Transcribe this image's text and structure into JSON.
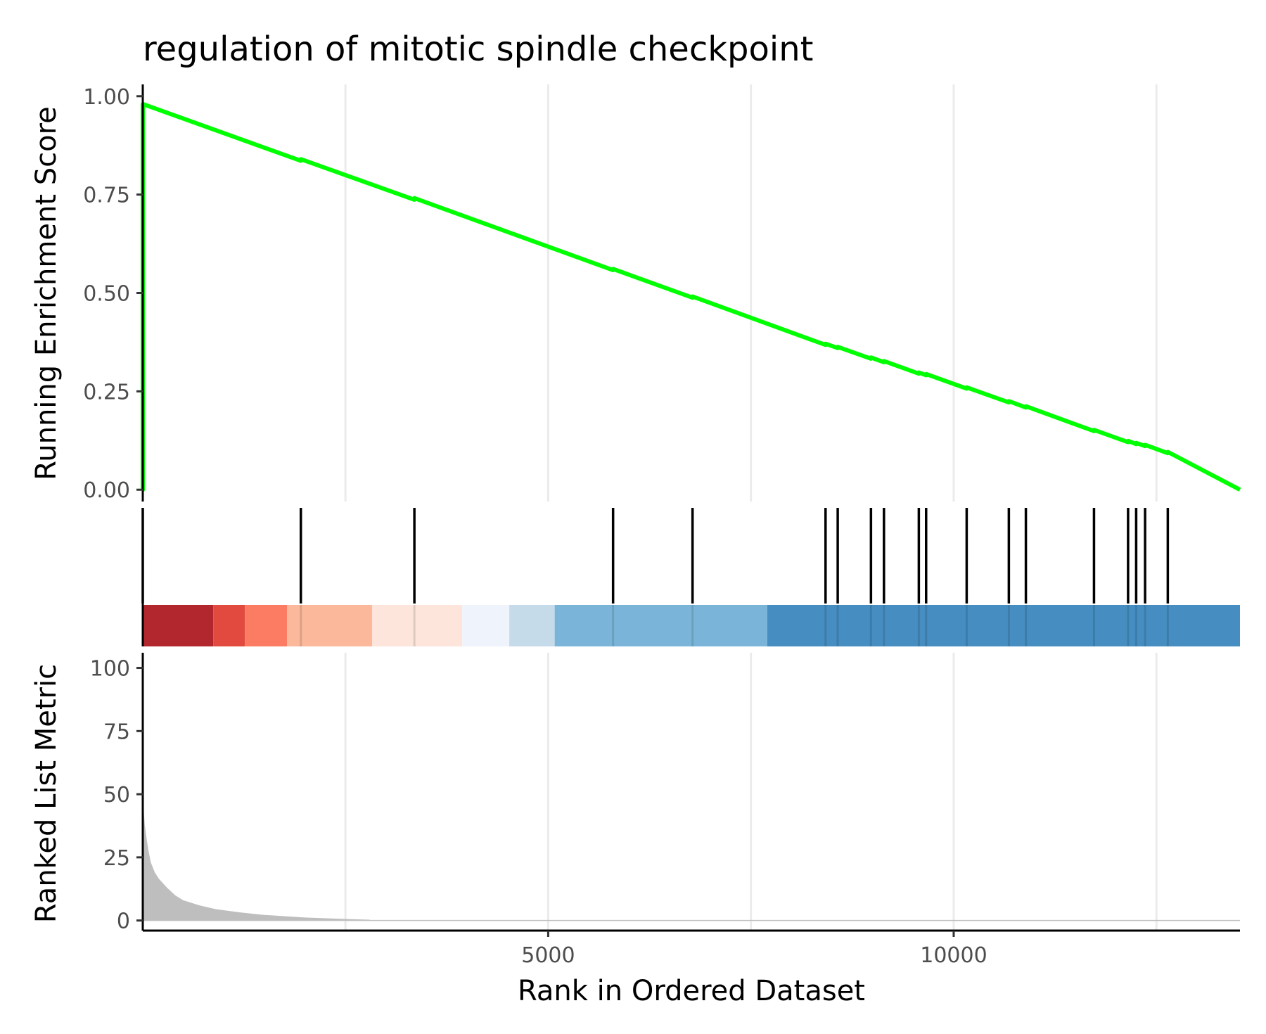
{
  "chart_data": {
    "type": "line",
    "title": "regulation of mitotic spindle checkpoint",
    "xlabel": "Rank in Ordered Dataset",
    "xlim": [
      1,
      13530
    ],
    "x_ticks": [
      5000,
      10000
    ],
    "x_tick_labels": [
      "5000",
      "10000"
    ],
    "grid": true,
    "panels": [
      {
        "id": "running-es",
        "ylabel": "Running Enrichment Score",
        "ylim": [
          -0.03,
          1.03
        ],
        "y_ticks": [
          0,
          0.25,
          0.5,
          0.75,
          1
        ],
        "y_tick_labels": [
          "0.00",
          "0.25",
          "0.50",
          "0.75",
          "1.00"
        ],
        "series": [
          {
            "color": "#00ff00",
            "x": [
              1,
              2,
              2,
              1950,
              1950,
              3350,
              3350,
              5800,
              5800,
              6780,
              6780,
              8420,
              8420,
              8570,
              8570,
              8980,
              8980,
              9140,
              9140,
              9570,
              9570,
              9660,
              9660,
              10160,
              10160,
              10680,
              10680,
              10890,
              10890,
              11730,
              11730,
              12150,
              12150,
              12250,
              12250,
              12360,
              12360,
              12640,
              12640,
              13530
            ],
            "y": [
              0,
              0,
              0.98,
              0.836,
              0.84,
              0.737,
              0.741,
              0.558,
              0.561,
              0.488,
              0.491,
              0.368,
              0.371,
              0.36,
              0.363,
              0.333,
              0.336,
              0.324,
              0.327,
              0.295,
              0.298,
              0.291,
              0.294,
              0.257,
              0.26,
              0.222,
              0.225,
              0.209,
              0.212,
              0.149,
              0.152,
              0.121,
              0.124,
              0.116,
              0.119,
              0.111,
              0.114,
              0.093,
              0.096,
              0
            ]
          }
        ]
      },
      {
        "id": "gene-hits",
        "hit_positions": [
          1,
          1950,
          3350,
          5800,
          6780,
          8420,
          8570,
          8980,
          9140,
          9570,
          9660,
          10160,
          10680,
          10890,
          11730,
          12150,
          12250,
          12360,
          12640
        ],
        "color_bands": [
          {
            "start": 1,
            "end": 870,
            "color": "#b2272d"
          },
          {
            "start": 870,
            "end": 1260,
            "color": "#e34a3f"
          },
          {
            "start": 1260,
            "end": 1780,
            "color": "#fb7c62"
          },
          {
            "start": 1780,
            "end": 2830,
            "color": "#fbb89b"
          },
          {
            "start": 2830,
            "end": 3940,
            "color": "#fde5db"
          },
          {
            "start": 3940,
            "end": 4520,
            "color": "#eff3fb"
          },
          {
            "start": 4520,
            "end": 5080,
            "color": "#c6dbe9"
          },
          {
            "start": 5080,
            "end": 7700,
            "color": "#7ab5d9"
          },
          {
            "start": 7700,
            "end": 13530,
            "color": "#468ec1"
          }
        ]
      },
      {
        "id": "ranked-metric",
        "type": "area",
        "ylabel": "Ranked List Metric",
        "ylim": [
          -4,
          106
        ],
        "y_ticks": [
          0,
          25,
          50,
          75,
          100
        ],
        "y_tick_labels": [
          "0",
          "25",
          "50",
          "75",
          "100"
        ],
        "series": [
          {
            "color": "#bebebe",
            "x": [
              1,
              10,
              25,
              50,
              75,
              100,
              150,
              200,
              300,
              400,
              500,
              700,
              900,
              1200,
              1500,
              2000,
              2500,
              2800
            ],
            "y": [
              100,
              45,
              38,
              32,
              27,
              23,
              19,
              16.5,
              13,
              10,
              8,
              6,
              4.5,
              3.2,
              2.2,
              1.2,
              0.6,
              0.3
            ]
          }
        ]
      }
    ]
  }
}
